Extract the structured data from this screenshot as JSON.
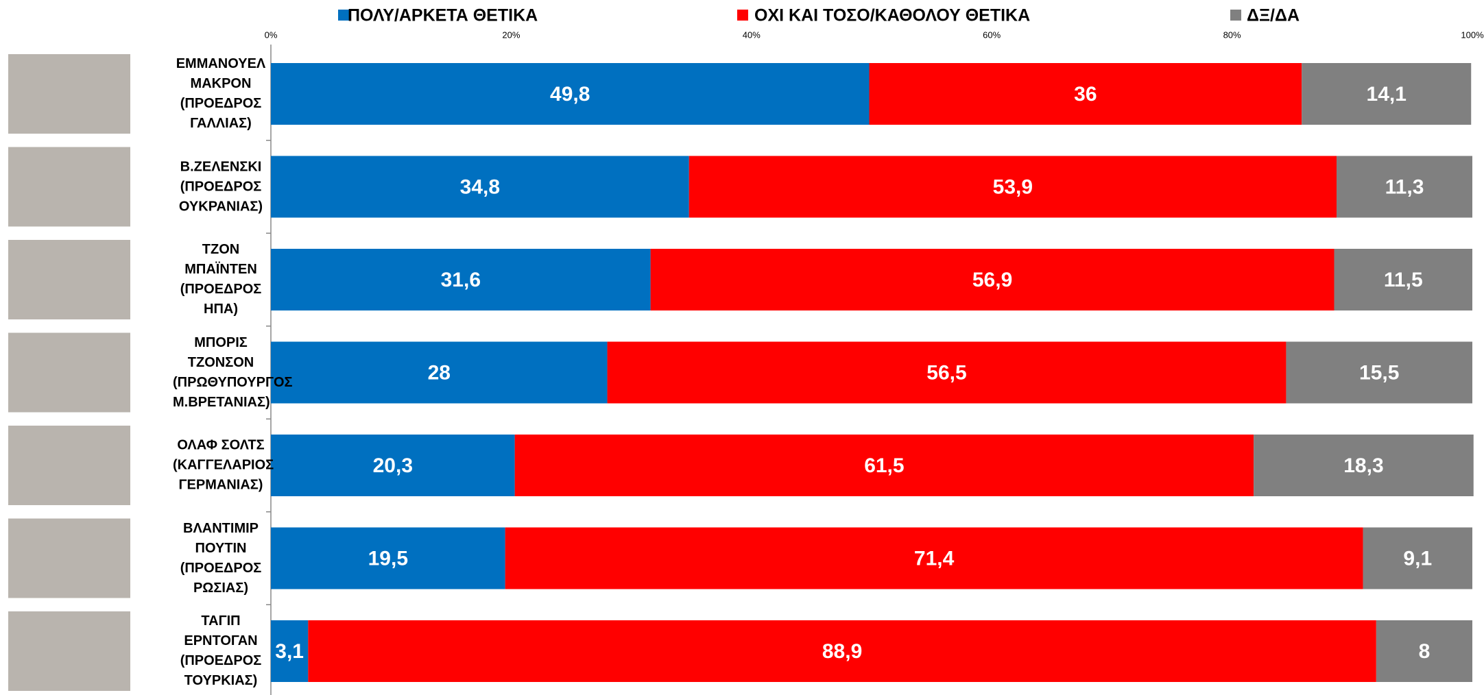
{
  "chart_data": {
    "type": "stacked-bar-horizontal",
    "categories": [
      "ΕΜΜΑΝΟΥΕΛ\nΜΑΚΡΟΝ\n(ΠΡΟΕΔΡΟΣ\nΓΑΛΛΙΑΣ)",
      "Β.ΖΕΛΕΝΣΚΙ\n(ΠΡΟΕΔΡΟΣ\nΟΥΚΡΑΝΙΑΣ)",
      "ΤΖΟΝ ΜΠΑΪΝΤΕΝ\n(ΠΡΟΕΔΡΟΣ ΗΠΑ)",
      "ΜΠΟΡΙΣ\nΤΖΟΝΣΟΝ\n(ΠΡΩΘΥΠΟΥΡΓΟΣ\nΜ.ΒΡΕΤΑΝΙΑΣ)",
      "ΟΛΑΦ ΣΟΛΤΣ\n(ΚΑΓΓΕΛΑΡΙΟΣ\nΓΕΡΜΑΝΙΑΣ)",
      "ΒΛΑΝΤΙΜΙΡ\nΠΟΥΤΙΝ\n(ΠΡΟΕΔΡΟΣ\nΡΩΣΙΑΣ)",
      "ΤΑΓΙΠ ΕΡΝΤΟΓΑΝ\n(ΠΡΟΕΔΡΟΣ\nΤΟΥΡΚΙΑΣ)"
    ],
    "series": [
      {
        "name": "ΠΟΛΥ/ΑΡΚΕΤΑ ΘΕΤΙΚΑ",
        "color": "#0070c0",
        "values": [
          49.8,
          34.8,
          31.6,
          28,
          20.3,
          19.5,
          3.1
        ],
        "value_labels": [
          "49,8",
          "34,8",
          "31,6",
          "28",
          "20,3",
          "19,5",
          "3,1"
        ]
      },
      {
        "name": "ΟΧΙ ΚΑΙ ΤΟΣΟ/ΚΑΘΟΛΟΥ ΘΕΤΙΚΑ",
        "color": "#ff0000",
        "values": [
          36,
          53.9,
          56.9,
          56.5,
          61.5,
          71.4,
          88.9
        ],
        "value_labels": [
          "36",
          "53,9",
          "56,9",
          "56,5",
          "61,5",
          "71,4",
          "88,9"
        ]
      },
      {
        "name": "ΔΞ/ΔΑ",
        "color": "#808080",
        "values": [
          14.1,
          11.3,
          11.5,
          15.5,
          18.3,
          9.1,
          8
        ],
        "value_labels": [
          "14,1",
          "11,3",
          "11,5",
          "15,5",
          "18,3",
          "9,1",
          "8"
        ]
      }
    ],
    "xlim": [
      0,
      100
    ],
    "xticks": [
      {
        "value": 0,
        "label": "0%"
      },
      {
        "value": 20,
        "label": "20%"
      },
      {
        "value": 40,
        "label": "40%"
      },
      {
        "value": 60,
        "label": "60%"
      },
      {
        "value": 80,
        "label": "80%"
      },
      {
        "value": 100,
        "label": "100%"
      }
    ]
  }
}
